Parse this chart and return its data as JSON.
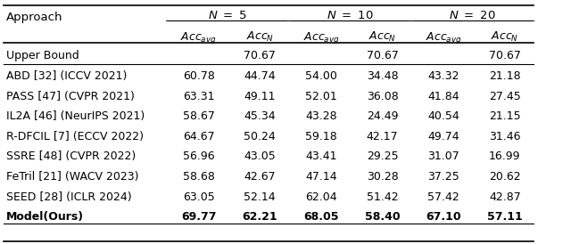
{
  "col_groups": [
    {
      "label": "N = 5"
    },
    {
      "label": "N = 10"
    },
    {
      "label": "N = 20"
    }
  ],
  "rows": [
    {
      "approach": "Upper Bound",
      "bold": false,
      "values": [
        null,
        70.67,
        null,
        70.67,
        null,
        70.67
      ]
    },
    {
      "approach": "ABD [32] (ICCV 2021)",
      "bold": false,
      "values": [
        60.78,
        44.74,
        54.0,
        34.48,
        43.32,
        21.18
      ]
    },
    {
      "approach": "PASS [47] (CVPR 2021)",
      "bold": false,
      "values": [
        63.31,
        49.11,
        52.01,
        36.08,
        41.84,
        27.45
      ]
    },
    {
      "approach": "IL2A [46] (NeurIPS 2021)",
      "bold": false,
      "values": [
        58.67,
        45.34,
        43.28,
        24.49,
        40.54,
        21.15
      ]
    },
    {
      "approach": "R-DFCIL [7] (ECCV 2022)",
      "bold": false,
      "values": [
        64.67,
        50.24,
        59.18,
        42.17,
        49.74,
        31.46
      ]
    },
    {
      "approach": "SSRE [48] (CVPR 2022)",
      "bold": false,
      "values": [
        56.96,
        43.05,
        43.41,
        29.25,
        31.07,
        16.99
      ]
    },
    {
      "approach": "FeTril [21] (WACV 2023)",
      "bold": false,
      "values": [
        58.68,
        42.67,
        47.14,
        30.28,
        37.25,
        20.62
      ]
    },
    {
      "approach": "SEED [28] (ICLR 2024)",
      "bold": false,
      "values": [
        63.05,
        52.14,
        62.04,
        51.42,
        57.42,
        42.87
      ]
    },
    {
      "approach": "Model(Ours)",
      "bold": true,
      "values": [
        69.77,
        62.21,
        68.05,
        58.4,
        67.1,
        57.11
      ]
    }
  ],
  "bg_color": "#ffffff",
  "text_color": "#000000"
}
